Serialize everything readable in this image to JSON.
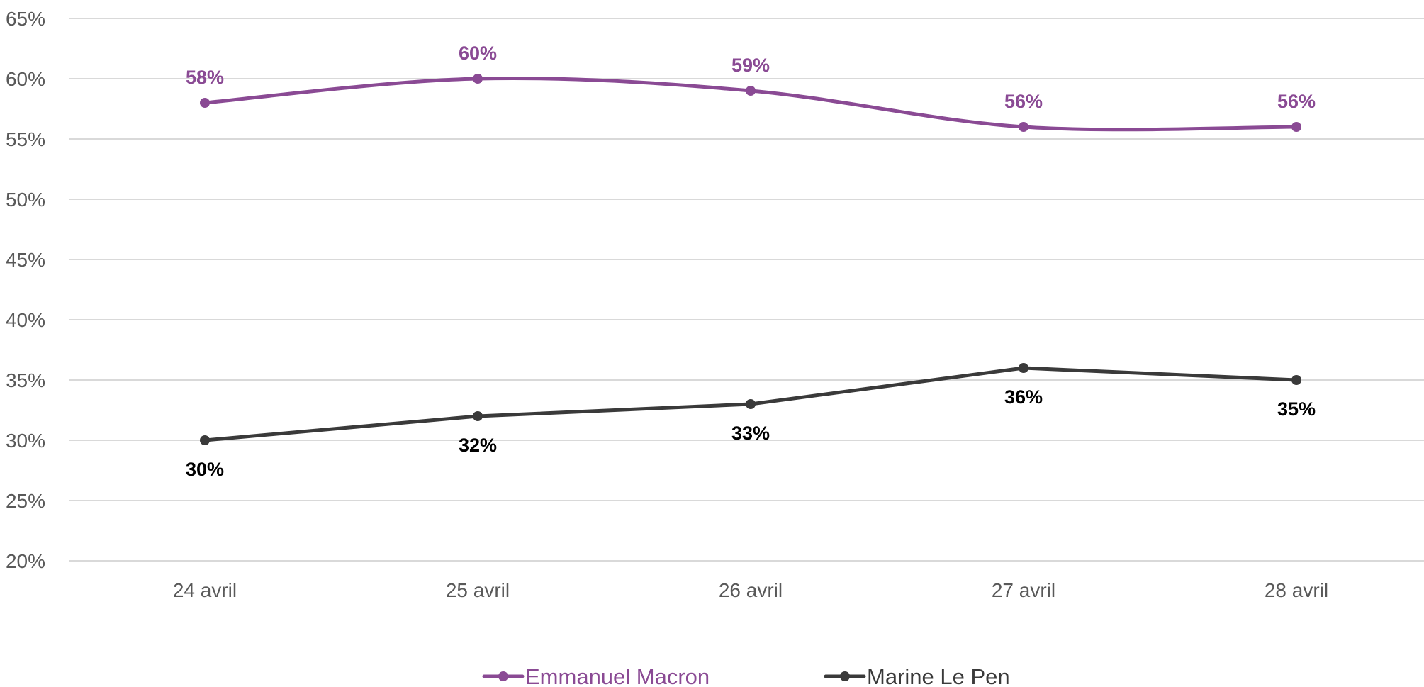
{
  "chart_data": {
    "type": "line",
    "title": "",
    "xlabel": "",
    "ylabel": "",
    "categories": [
      "24 avril",
      "25 avril",
      "26 avril",
      "27 avril",
      "28 avril"
    ],
    "ylim": [
      20,
      65
    ],
    "yticks": [
      20,
      25,
      30,
      35,
      40,
      45,
      50,
      55,
      60,
      65
    ],
    "ytick_labels": [
      "20%",
      "25%",
      "30%",
      "35%",
      "40%",
      "45%",
      "50%",
      "55%",
      "60%",
      "65%"
    ],
    "grid": true,
    "legend_position": "bottom",
    "series": [
      {
        "name": "Emmanuel Macron",
        "color": "#8a4a94",
        "values": [
          58,
          60,
          59,
          56,
          56
        ],
        "labels": [
          "58%",
          "60%",
          "59%",
          "56%",
          "56%"
        ],
        "label_position": "above",
        "smooth": true
      },
      {
        "name": "Marine Le Pen",
        "color": "#3a3a3a",
        "label_color": "#000000",
        "values": [
          30,
          32,
          33,
          36,
          35
        ],
        "labels": [
          "30%",
          "32%",
          "33%",
          "36%",
          "35%"
        ],
        "label_position": "below",
        "smooth": false
      }
    ]
  }
}
